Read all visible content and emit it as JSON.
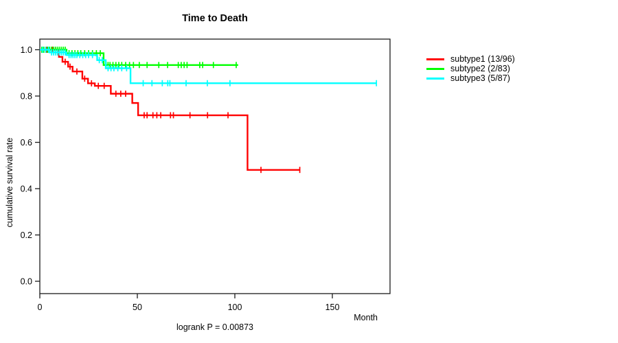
{
  "footnote": "logrank P = 0.00873",
  "chart_data": {
    "type": "line",
    "subtype": "kaplan-meier-step-curves",
    "title": "Time to Death",
    "xlabel": "Month",
    "ylabel": "cumulative survival rate",
    "xlim": [
      0,
      180
    ],
    "ylim": [
      0,
      1
    ],
    "grid": false,
    "legend_position": "right-outside",
    "x_ticks": [
      0,
      50,
      100,
      150
    ],
    "x_tick_labels": [
      "0",
      "50",
      "100",
      "150"
    ],
    "y_ticks": [
      0.0,
      0.2,
      0.4,
      0.6,
      0.8,
      1.0
    ],
    "y_tick_labels": [
      "0.0",
      "0.2",
      "0.4",
      "0.6",
      "0.8",
      "1.0"
    ],
    "series": [
      {
        "name": "subtype1 (13/96)",
        "color": "#FF0000",
        "start": 1.0,
        "end_x": 133.5,
        "steps": [
          [
            9.8,
            0.969
          ],
          [
            11.6,
            0.948
          ],
          [
            14.5,
            0.927
          ],
          [
            16.8,
            0.906
          ],
          [
            21.8,
            0.875
          ],
          [
            24.7,
            0.855
          ],
          [
            28.2,
            0.844
          ],
          [
            36.4,
            0.81
          ],
          [
            47.4,
            0.77
          ],
          [
            50.4,
            0.717
          ],
          [
            106.5,
            0.481
          ]
        ],
        "censors": [
          [
            2,
            1.0
          ],
          [
            3.5,
            1.0
          ],
          [
            5,
            1.0
          ],
          [
            6.5,
            1.0
          ],
          [
            8,
            1.0
          ],
          [
            13,
            0.948
          ],
          [
            15.5,
            0.927
          ],
          [
            19,
            0.906
          ],
          [
            23,
            0.875
          ],
          [
            26.5,
            0.855
          ],
          [
            30,
            0.844
          ],
          [
            33,
            0.844
          ],
          [
            39,
            0.81
          ],
          [
            41.5,
            0.81
          ],
          [
            44,
            0.81
          ],
          [
            53.5,
            0.717
          ],
          [
            55,
            0.717
          ],
          [
            58,
            0.717
          ],
          [
            60,
            0.717
          ],
          [
            62,
            0.717
          ],
          [
            67,
            0.717
          ],
          [
            68.5,
            0.717
          ],
          [
            77,
            0.717
          ],
          [
            86,
            0.717
          ],
          [
            96.5,
            0.717
          ],
          [
            113.4,
            0.481
          ],
          [
            133.3,
            0.481
          ]
        ]
      },
      {
        "name": "subtype2 (2/83)",
        "color": "#00FF00",
        "start": 1.0,
        "end_x": 101.7,
        "steps": [
          [
            13.7,
            0.985
          ],
          [
            32.7,
            0.934
          ]
        ],
        "censors": [
          [
            1,
            1.0
          ],
          [
            2,
            1.0
          ],
          [
            3,
            1.0
          ],
          [
            4,
            1.0
          ],
          [
            5,
            1.0
          ],
          [
            6,
            1.0
          ],
          [
            7,
            1.0
          ],
          [
            8,
            1.0
          ],
          [
            9,
            1.0
          ],
          [
            10,
            1.0
          ],
          [
            11,
            1.0
          ],
          [
            12,
            1.0
          ],
          [
            13,
            1.0
          ],
          [
            15,
            0.985
          ],
          [
            16.5,
            0.985
          ],
          [
            18,
            0.985
          ],
          [
            19.5,
            0.985
          ],
          [
            21,
            0.985
          ],
          [
            23,
            0.985
          ],
          [
            25,
            0.985
          ],
          [
            27,
            0.985
          ],
          [
            29,
            0.985
          ],
          [
            31,
            0.985
          ],
          [
            34,
            0.934
          ],
          [
            35,
            0.934
          ],
          [
            36,
            0.934
          ],
          [
            37.5,
            0.934
          ],
          [
            39,
            0.934
          ],
          [
            40.5,
            0.934
          ],
          [
            42,
            0.934
          ],
          [
            44,
            0.934
          ],
          [
            46,
            0.934
          ],
          [
            48,
            0.934
          ],
          [
            51,
            0.934
          ],
          [
            55,
            0.934
          ],
          [
            61,
            0.934
          ],
          [
            65.5,
            0.934
          ],
          [
            71,
            0.934
          ],
          [
            72.5,
            0.934
          ],
          [
            74,
            0.934
          ],
          [
            75.5,
            0.934
          ],
          [
            82,
            0.934
          ],
          [
            83.5,
            0.934
          ],
          [
            89,
            0.934
          ],
          [
            100.7,
            0.934
          ]
        ]
      },
      {
        "name": "subtype3 (5/87)",
        "color": "#00FFFF",
        "start": 1.0,
        "end_x": 172.6,
        "steps": [
          [
            5,
            0.9885
          ],
          [
            13.7,
            0.977
          ],
          [
            29.4,
            0.955
          ],
          [
            33.8,
            0.92
          ],
          [
            46.5,
            0.8555
          ]
        ],
        "censors": [
          [
            1.5,
            1.0
          ],
          [
            3,
            1.0
          ],
          [
            4.5,
            1.0
          ],
          [
            6,
            0.9885
          ],
          [
            7,
            0.9885
          ],
          [
            8,
            0.9885
          ],
          [
            9,
            0.9885
          ],
          [
            10,
            0.9885
          ],
          [
            11,
            0.9885
          ],
          [
            12,
            0.9885
          ],
          [
            13,
            0.9885
          ],
          [
            15,
            0.977
          ],
          [
            16,
            0.977
          ],
          [
            17,
            0.977
          ],
          [
            18,
            0.977
          ],
          [
            19,
            0.977
          ],
          [
            20.5,
            0.977
          ],
          [
            22,
            0.977
          ],
          [
            23.5,
            0.977
          ],
          [
            25,
            0.977
          ],
          [
            27,
            0.977
          ],
          [
            30.5,
            0.955
          ],
          [
            32,
            0.955
          ],
          [
            35,
            0.92
          ],
          [
            36.5,
            0.92
          ],
          [
            38,
            0.92
          ],
          [
            40,
            0.92
          ],
          [
            42,
            0.92
          ],
          [
            44.5,
            0.92
          ],
          [
            53,
            0.8555
          ],
          [
            57.5,
            0.8555
          ],
          [
            62.8,
            0.8555
          ],
          [
            65.6,
            0.8555
          ],
          [
            66.7,
            0.8555
          ],
          [
            75,
            0.8555
          ],
          [
            85.9,
            0.8555
          ],
          [
            97.5,
            0.8555
          ],
          [
            172.6,
            0.8555
          ]
        ]
      }
    ]
  }
}
